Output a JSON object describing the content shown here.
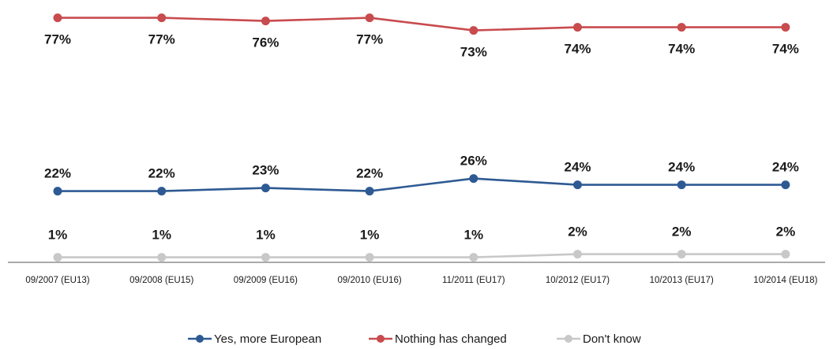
{
  "chart_data": {
    "type": "line",
    "title": "",
    "xlabel": "",
    "ylabel": "",
    "ylim": [
      0,
      100
    ],
    "grid": false,
    "legend_position": "bottom-center",
    "categories": [
      "09/2007 (EU13)",
      "09/2008 (EU15)",
      "09/2009 (EU16)",
      "09/2010 (EU16)",
      "11/2011 (EU17)",
      "10/2012 (EU17)",
      "10/2013 (EU17)",
      "10/2014 (EU18)"
    ],
    "series": [
      {
        "name": "Yes, more European",
        "color": "#2e5a93",
        "values": [
          22,
          22,
          23,
          22,
          26,
          24,
          24,
          24
        ],
        "labels": [
          "22%",
          "22%",
          "23%",
          "22%",
          "26%",
          "24%",
          "24%",
          "24%"
        ]
      },
      {
        "name": "Nothing has changed",
        "color": "#c84b4e",
        "values": [
          77,
          77,
          76,
          77,
          73,
          74,
          74,
          74
        ],
        "labels": [
          "77%",
          "77%",
          "76%",
          "77%",
          "73%",
          "74%",
          "74%",
          "74%"
        ]
      },
      {
        "name": "Don't know",
        "color": "#c8c8c8",
        "values": [
          1,
          1,
          1,
          1,
          1,
          2,
          2,
          2
        ],
        "labels": [
          "1%",
          "1%",
          "1%",
          "1%",
          "1%",
          "2%",
          "2%",
          "2%"
        ]
      }
    ]
  }
}
